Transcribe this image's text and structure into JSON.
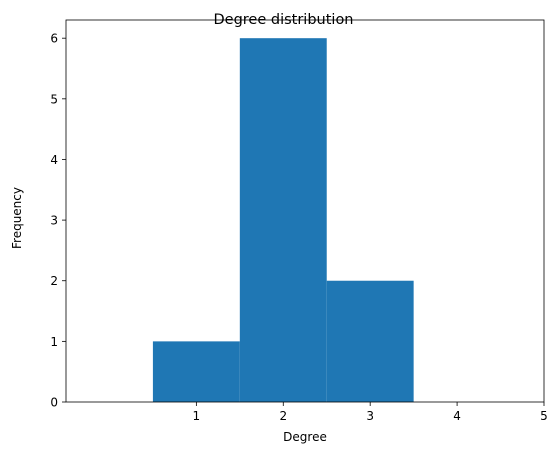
{
  "chart_data": {
    "type": "bar",
    "title": "Degree distribution",
    "xlabel": "Degree",
    "ylabel": "Frequency",
    "xlim": [
      -0.5,
      5
    ],
    "ylim": [
      0,
      6.3
    ],
    "xticks": [
      1,
      2,
      3,
      4,
      5
    ],
    "yticks": [
      0,
      1,
      2,
      3,
      4,
      5,
      6
    ],
    "bins": [
      {
        "x0": 0.5,
        "x1": 1.5,
        "value": 1
      },
      {
        "x0": 1.5,
        "x1": 2.5,
        "value": 6
      },
      {
        "x0": 2.5,
        "x1": 3.5,
        "value": 2
      },
      {
        "x0": 3.5,
        "x1": 4.5,
        "value": 0
      }
    ],
    "bar_color": "#1f77b4",
    "grid": false,
    "legend": "none"
  }
}
